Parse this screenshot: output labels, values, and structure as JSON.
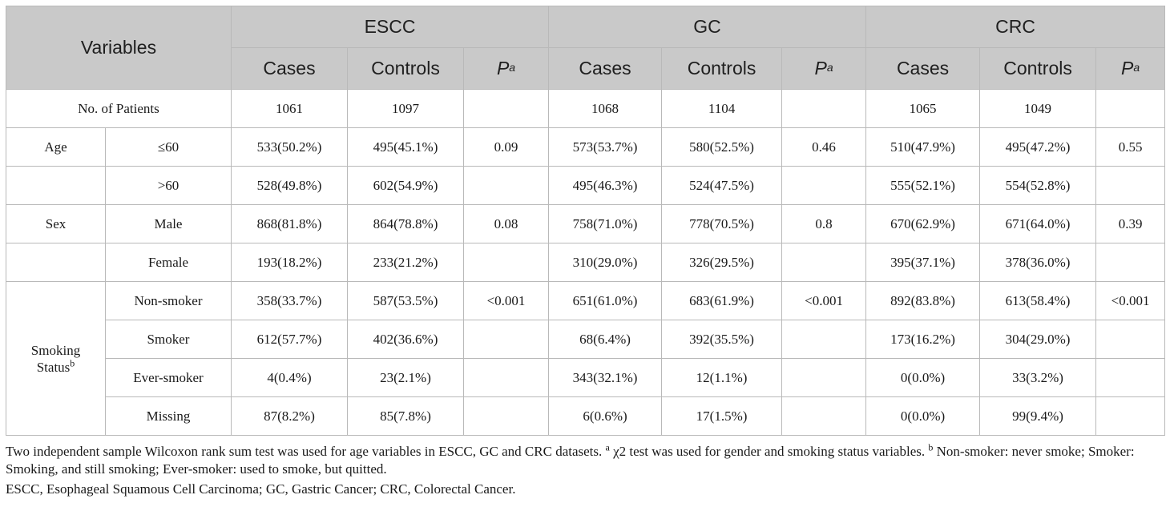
{
  "header": {
    "variables": "Variables",
    "groups": [
      "ESCC",
      "GC",
      "CRC"
    ],
    "cases": "Cases",
    "controls": "Controls",
    "p_letter": "P",
    "p_sup": "a"
  },
  "rows": {
    "patients": {
      "label": "No. of Patients",
      "escc_cases": "1061",
      "escc_controls": "1097",
      "gc_cases": "1068",
      "gc_controls": "1104",
      "crc_cases": "1065",
      "crc_controls": "1049"
    },
    "age": {
      "label": "Age",
      "r1": {
        "sub": "≤60",
        "v": [
          "533(50.2%)",
          "495(45.1%)",
          "0.09",
          "573(53.7%)",
          "580(52.5%)",
          "0.46",
          "510(47.9%)",
          "495(47.2%)",
          "0.55"
        ]
      },
      "r2": {
        "sub": ">60",
        "v": [
          "528(49.8%)",
          "602(54.9%)",
          "",
          "495(46.3%)",
          "524(47.5%)",
          "",
          "555(52.1%)",
          "554(52.8%)",
          ""
        ]
      }
    },
    "sex": {
      "label": "Sex",
      "r1": {
        "sub": "Male",
        "v": [
          "868(81.8%)",
          "864(78.8%)",
          "0.08",
          "758(71.0%)",
          "778(70.5%)",
          "0.8",
          "670(62.9%)",
          "671(64.0%)",
          "0.39"
        ]
      },
      "r2": {
        "sub": "Female",
        "v": [
          "193(18.2%)",
          "233(21.2%)",
          "",
          "310(29.0%)",
          "326(29.5%)",
          "",
          "395(37.1%)",
          "378(36.0%)",
          ""
        ]
      }
    },
    "smoking": {
      "label_line1": "Smoking",
      "label_line2": "Status",
      "label_sup": "b",
      "r1": {
        "sub": "Non-smoker",
        "v": [
          "358(33.7%)",
          "587(53.5%)",
          "<0.001",
          "651(61.0%)",
          "683(61.9%)",
          "<0.001",
          "892(83.8%)",
          "613(58.4%)",
          "<0.001"
        ]
      },
      "r2": {
        "sub": "Smoker",
        "v": [
          "612(57.7%)",
          "402(36.6%)",
          "",
          "68(6.4%)",
          "392(35.5%)",
          "",
          "173(16.2%)",
          "304(29.0%)",
          ""
        ]
      },
      "r3": {
        "sub": "Ever-smoker",
        "v": [
          "4(0.4%)",
          "23(2.1%)",
          "",
          "343(32.1%)",
          "12(1.1%)",
          "",
          "0(0.0%)",
          "33(3.2%)",
          ""
        ]
      },
      "r4": {
        "sub": "Missing",
        "v": [
          "87(8.2%)",
          "85(7.8%)",
          "",
          "6(0.6%)",
          "17(1.5%)",
          "",
          "0(0.0%)",
          "99(9.4%)",
          ""
        ]
      }
    }
  },
  "footnotes": {
    "line1_a": "Two independent sample Wilcoxon rank sum test was used for age variables in ESCC, GC and CRC datasets. ",
    "sup_a": "a",
    "line1_b": " χ2 test was used for gender and smoking status variables. ",
    "sup_b": "b",
    "line1_c": " Non-smoker: never smoke; Smoker: Smoking, and still smoking; Ever-smoker: used to smoke, but quitted.",
    "line2": "ESCC, Esophageal Squamous Cell Carcinoma; GC, Gastric Cancer; CRC, Colorectal Cancer."
  }
}
